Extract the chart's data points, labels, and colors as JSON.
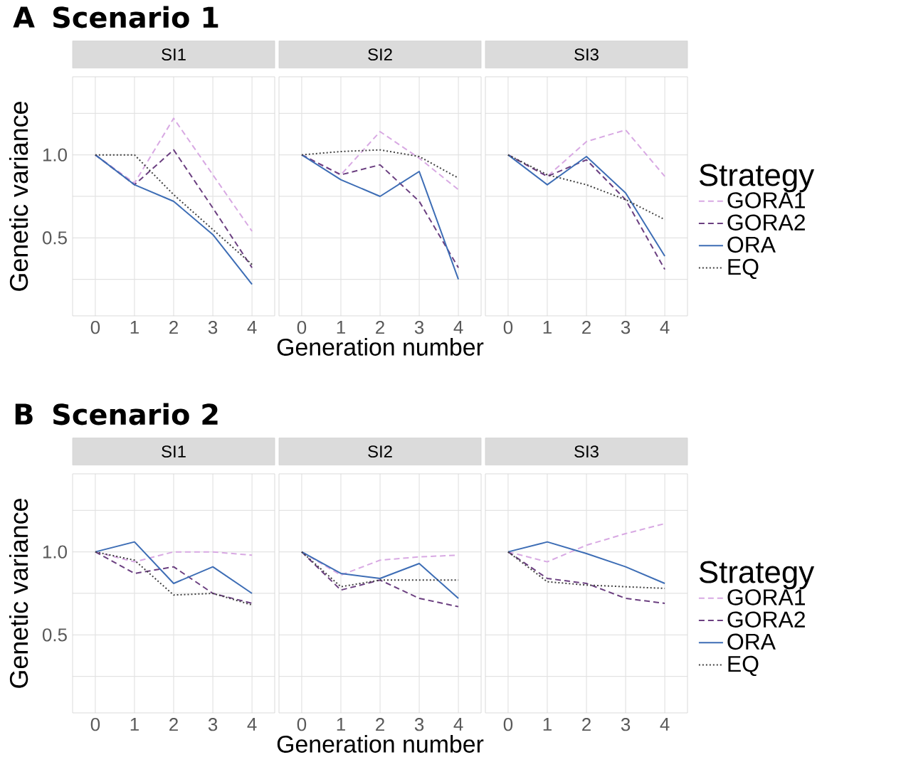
{
  "chart_data": [
    {
      "type": "line",
      "title": "SI1",
      "ylabel": "Genetic variance",
      "annotations": [
        "A",
        "Scenario 1"
      ],
      "x": [
        0,
        1,
        2,
        3,
        4
      ],
      "xlim": [
        -0.58,
        4.58
      ],
      "ylim": [
        0.03,
        1.47
      ],
      "xticks": [
        0,
        1,
        2,
        3,
        4
      ],
      "yticks": [
        {
          "value": 0.25,
          "label": null
        },
        0.5,
        {
          "value": 0.75,
          "label": null
        },
        {
          "value": 1,
          "label": "1.0"
        },
        {
          "value": 1.25,
          "label": null
        }
      ],
      "grid": true,
      "series": [
        {
          "color": "#d8a9e3",
          "line_style": "dashed",
          "values": [
            1.0,
            0.83,
            1.22,
            0.88,
            0.54
          ]
        },
        {
          "color": "#6b3f80",
          "line_style": "dashed",
          "values": [
            1.0,
            0.82,
            1.03,
            0.68,
            0.32
          ]
        },
        {
          "color": "#3d6db5",
          "line_style": "solid",
          "values": [
            1.0,
            0.82,
            0.72,
            0.52,
            0.22
          ]
        },
        {
          "color": "#404040",
          "line_style": "dotted",
          "values": [
            1.0,
            1.0,
            0.76,
            0.55,
            0.34
          ]
        }
      ]
    },
    {
      "type": "line",
      "title": "SI2",
      "xlabel": "Generation number",
      "x": [
        0,
        1,
        2,
        3,
        4
      ],
      "xlim": [
        -0.58,
        4.58
      ],
      "ylim": [
        0.03,
        1.47
      ],
      "xticks": [
        0,
        1,
        2,
        3,
        4
      ],
      "yticks": [
        0.25,
        0.5,
        0.75,
        1,
        1.25
      ],
      "grid": true,
      "tick_labels": "x",
      "series": [
        {
          "color": "#d8a9e3",
          "line_style": "dashed",
          "values": [
            1.0,
            0.88,
            1.14,
            0.98,
            0.79
          ]
        },
        {
          "color": "#6b3f80",
          "line_style": "dashed",
          "values": [
            1.0,
            0.88,
            0.94,
            0.72,
            0.32
          ]
        },
        {
          "color": "#3d6db5",
          "line_style": "solid",
          "values": [
            1.0,
            0.85,
            0.75,
            0.9,
            0.25
          ]
        },
        {
          "color": "#404040",
          "line_style": "dotted",
          "values": [
            1.0,
            1.02,
            1.03,
            0.99,
            0.86
          ]
        }
      ]
    },
    {
      "type": "line",
      "title": "SI3",
      "legend_title": "Strategy",
      "legend": "right",
      "x": [
        0,
        1,
        2,
        3,
        4
      ],
      "xlim": [
        -0.58,
        4.58
      ],
      "ylim": [
        0.03,
        1.47
      ],
      "xticks": [
        0,
        1,
        2,
        3,
        4
      ],
      "yticks": [
        0.25,
        0.5,
        0.75,
        1,
        1.25
      ],
      "grid": true,
      "tick_labels": "x",
      "series": [
        {
          "name": "GORA1",
          "color": "#d8a9e3",
          "line_style": "dashed",
          "values": [
            1.0,
            0.87,
            1.08,
            1.15,
            0.87
          ]
        },
        {
          "name": "GORA2",
          "color": "#6b3f80",
          "line_style": "dashed",
          "values": [
            1.0,
            0.87,
            0.97,
            0.73,
            0.31
          ]
        },
        {
          "name": "ORA",
          "color": "#3d6db5",
          "line_style": "solid",
          "values": [
            1.0,
            0.82,
            0.99,
            0.77,
            0.39
          ]
        },
        {
          "name": "EQ",
          "color": "#404040",
          "line_style": "dotted",
          "values": [
            1.0,
            0.88,
            0.82,
            0.73,
            0.61
          ]
        }
      ]
    },
    {
      "type": "line",
      "title": "SI1",
      "ylabel": "Genetic variance",
      "annotations": [
        "B",
        "Scenario 2"
      ],
      "x": [
        0,
        1,
        2,
        3,
        4
      ],
      "xlim": [
        -0.58,
        4.58
      ],
      "ylim": [
        0.03,
        1.47
      ],
      "xticks": [
        0,
        1,
        2,
        3,
        4
      ],
      "yticks": [
        {
          "value": 0.25,
          "label": null
        },
        0.5,
        {
          "value": 0.75,
          "label": null
        },
        {
          "value": 1,
          "label": "1.0"
        },
        {
          "value": 1.25,
          "label": null
        }
      ],
      "grid": true,
      "series": [
        {
          "color": "#d8a9e3",
          "line_style": "dashed",
          "values": [
            1.0,
            0.94,
            1.0,
            1.0,
            0.98
          ]
        },
        {
          "color": "#6b3f80",
          "line_style": "dashed",
          "values": [
            1.0,
            0.87,
            0.91,
            0.75,
            0.69
          ]
        },
        {
          "color": "#3d6db5",
          "line_style": "solid",
          "values": [
            1.0,
            1.06,
            0.81,
            0.91,
            0.75
          ]
        },
        {
          "color": "#404040",
          "line_style": "dotted",
          "values": [
            1.0,
            0.95,
            0.74,
            0.75,
            0.68
          ]
        }
      ]
    },
    {
      "type": "line",
      "title": "SI2",
      "xlabel": "Generation number",
      "x": [
        0,
        1,
        2,
        3,
        4
      ],
      "xlim": [
        -0.58,
        4.58
      ],
      "ylim": [
        0.03,
        1.47
      ],
      "xticks": [
        0,
        1,
        2,
        3,
        4
      ],
      "yticks": [
        0.25,
        0.5,
        0.75,
        1,
        1.25
      ],
      "grid": true,
      "tick_labels": "x",
      "series": [
        {
          "color": "#d8a9e3",
          "line_style": "dashed",
          "values": [
            1.0,
            0.86,
            0.95,
            0.97,
            0.98
          ]
        },
        {
          "color": "#6b3f80",
          "line_style": "dashed",
          "values": [
            1.0,
            0.77,
            0.83,
            0.72,
            0.67
          ]
        },
        {
          "color": "#3d6db5",
          "line_style": "solid",
          "values": [
            1.0,
            0.87,
            0.84,
            0.93,
            0.72
          ]
        },
        {
          "color": "#404040",
          "line_style": "dotted",
          "values": [
            1.0,
            0.79,
            0.83,
            0.83,
            0.83
          ]
        }
      ]
    },
    {
      "type": "line",
      "title": "SI3",
      "legend_title": "Strategy",
      "legend": "right",
      "x": [
        0,
        1,
        2,
        3,
        4
      ],
      "xlim": [
        -0.58,
        4.58
      ],
      "ylim": [
        0.03,
        1.47
      ],
      "xticks": [
        0,
        1,
        2,
        3,
        4
      ],
      "yticks": [
        0.25,
        0.5,
        0.75,
        1,
        1.25
      ],
      "grid": true,
      "tick_labels": "x",
      "series": [
        {
          "name": "GORA1",
          "color": "#d8a9e3",
          "line_style": "dashed",
          "values": [
            1.0,
            0.94,
            1.04,
            1.11,
            1.17
          ]
        },
        {
          "name": "GORA2",
          "color": "#6b3f80",
          "line_style": "dashed",
          "values": [
            1.0,
            0.84,
            0.81,
            0.72,
            0.69
          ]
        },
        {
          "name": "ORA",
          "color": "#3d6db5",
          "line_style": "solid",
          "values": [
            1.0,
            1.06,
            0.99,
            0.91,
            0.81
          ]
        },
        {
          "name": "EQ",
          "color": "#404040",
          "line_style": "dotted",
          "values": [
            1.0,
            0.82,
            0.8,
            0.79,
            0.78
          ]
        }
      ]
    }
  ]
}
